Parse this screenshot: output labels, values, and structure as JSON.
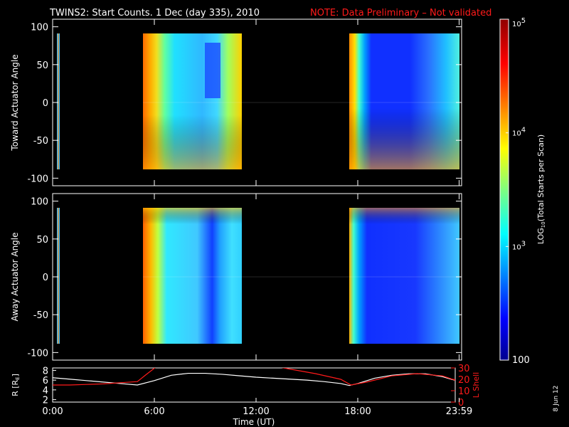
{
  "title": {
    "main": "TWINS2: Start Counts.  1 Dec (day 335), 2010",
    "note": "NOTE: Data Preliminary – Not validated",
    "note_color": "#ff1a1a"
  },
  "side_date": "8 Jun 12",
  "colors": {
    "background": "#000000",
    "axes": "#ffffff",
    "lshell": "#ff1a1a",
    "r_line": "#ffffff"
  },
  "chart_data": [
    {
      "type": "heatmap",
      "panel": "toward",
      "ylabel": "Toward Actuator Angle",
      "ylim": [
        -110,
        110
      ],
      "yticks": [
        "100",
        "50",
        "0",
        "-50",
        "-100"
      ],
      "ytick_values": [
        100,
        50,
        0,
        -50,
        -100
      ],
      "xlim": [
        0,
        24
      ],
      "angle_range": [
        -90,
        90
      ],
      "data_blocks": [
        {
          "start_hr": 0.1,
          "end_hr": 0.25
        },
        {
          "start_hr": 5.0,
          "end_hr": 11.2
        },
        {
          "start_hr": 17.0,
          "end_hr": 23.99
        }
      ]
    },
    {
      "type": "heatmap",
      "panel": "away",
      "ylabel": "Away Actuator Angle",
      "ylim": [
        -110,
        110
      ],
      "yticks": [
        "100",
        "50",
        "0",
        "-50",
        "-100"
      ],
      "ytick_values": [
        100,
        50,
        0,
        -50,
        -100
      ],
      "xlim": [
        0,
        24
      ],
      "angle_range": [
        -90,
        90
      ],
      "data_blocks": [
        {
          "start_hr": 0.1,
          "end_hr": 0.25
        },
        {
          "start_hr": 5.0,
          "end_hr": 11.2
        },
        {
          "start_hr": 17.0,
          "end_hr": 23.99
        }
      ]
    },
    {
      "type": "line",
      "panel": "orbit",
      "ylabel": "R [R_E]",
      "ylabel_main": "R [R",
      "ylabel_sub": "E",
      "ylabel_close": "]",
      "y2label": "L Shell",
      "xlabel": "Time (UT)",
      "xlim": [
        0,
        24
      ],
      "ylim": [
        1.5,
        8.5
      ],
      "y2lim": [
        0,
        30
      ],
      "yticks": [
        "8",
        "6",
        "4",
        "2"
      ],
      "ytick_values": [
        8,
        6,
        4,
        2
      ],
      "y2ticks": [
        "30",
        "20",
        "10",
        "0"
      ],
      "y2tick_values": [
        30,
        20,
        10,
        0
      ],
      "xtick_labels": [
        "0:00",
        "6:00",
        "12:00",
        "18:00",
        "23:59"
      ],
      "xtick_values": [
        0,
        6,
        12,
        18,
        23.98
      ],
      "series": [
        {
          "name": "R",
          "color": "#ffffff",
          "x": [
            0,
            1,
            2,
            3,
            4,
            5,
            6,
            7,
            8,
            9,
            10,
            11,
            12,
            13,
            14,
            15,
            16,
            17,
            17.5,
            18,
            19,
            20,
            21,
            22,
            23,
            24
          ],
          "y": [
            6.5,
            6.2,
            5.9,
            5.6,
            5.3,
            5.0,
            5.9,
            7.0,
            7.4,
            7.4,
            7.2,
            6.9,
            6.6,
            6.4,
            6.2,
            6.0,
            5.7,
            5.3,
            4.9,
            5.3,
            6.4,
            7.0,
            7.3,
            7.3,
            6.7,
            5.7
          ]
        },
        {
          "name": "L Shell",
          "color": "#ff1a1a",
          "segments": [
            {
              "x": [
                0,
                1,
                2,
                3,
                4,
                5,
                5.5,
                6.2
              ],
              "y": [
                15,
                15,
                15.5,
                16,
                17,
                18,
                24,
                32
              ]
            },
            {
              "x": [
                12.9,
                14,
                15.5,
                17,
                17.6,
                18.5,
                20,
                21.5,
                23,
                24
              ],
              "y": [
                32,
                29,
                25,
                20,
                15,
                17.5,
                23,
                25,
                23,
                18
              ]
            }
          ]
        }
      ]
    }
  ],
  "colorbar": {
    "label_main": "LOG",
    "label_sub": "10",
    "label_rest": "(Total Starts per Scan)",
    "ticks": [
      {
        "label": "10",
        "exp": "5",
        "value": 5
      },
      {
        "label": "10",
        "exp": "4",
        "value": 4
      },
      {
        "label": "10",
        "exp": "3",
        "value": 3
      },
      {
        "label": "100",
        "exp": "",
        "value": 2
      }
    ],
    "range": [
      2,
      5
    ]
  }
}
